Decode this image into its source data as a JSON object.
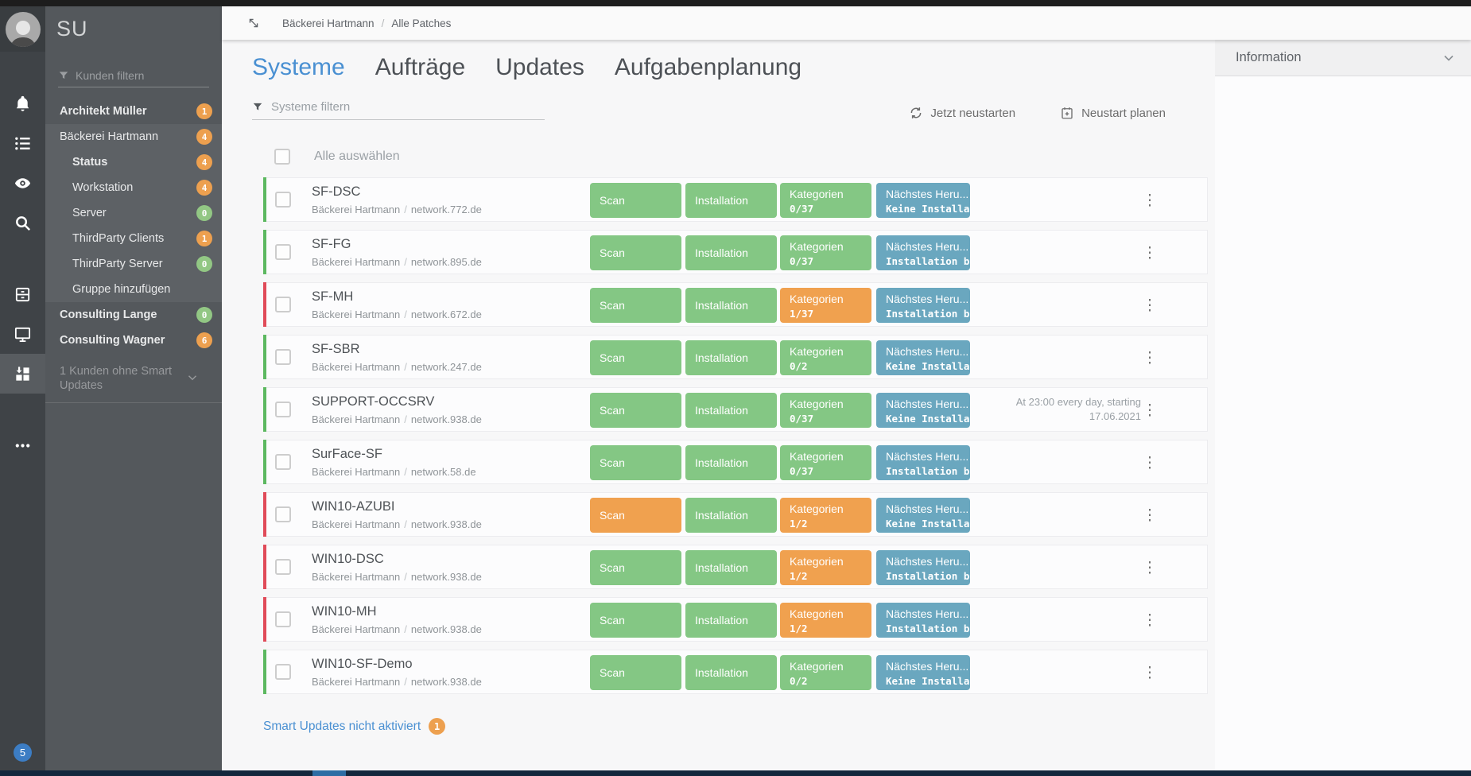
{
  "icons": {
    "kebab": "⋮"
  },
  "colors": {
    "accent_blue": "#4a90d2",
    "button_green": "#84c784",
    "button_orange": "#f0a14f",
    "button_blue": "#6aa7bf",
    "bar_green": "#5cb860",
    "bar_red": "#e04b59",
    "badge_orange": "#eda04f",
    "badge_green": "#92c784",
    "rail_badge_blue": "#3c7dc4"
  },
  "rail": {
    "badge_count": "5"
  },
  "sidebar": {
    "title": "SU",
    "filter_placeholder": "Kunden filtern",
    "items": [
      {
        "label": "Architekt Müller",
        "badge": "1",
        "badge_color": "orange",
        "bold": true,
        "indent": false,
        "group": false
      },
      {
        "label": "Bäckerei Hartmann",
        "badge": "4",
        "badge_color": "orange",
        "bold": false,
        "indent": false,
        "group": true
      },
      {
        "label": "Status",
        "badge": "4",
        "badge_color": "orange",
        "bold": true,
        "indent": true,
        "group": true
      },
      {
        "label": "Workstation",
        "badge": "4",
        "badge_color": "orange",
        "bold": false,
        "indent": true,
        "group": true
      },
      {
        "label": "Server",
        "badge": "0",
        "badge_color": "green",
        "bold": false,
        "indent": true,
        "group": true
      },
      {
        "label": "ThirdParty Clients",
        "badge": "1",
        "badge_color": "orange",
        "bold": false,
        "indent": true,
        "group": true
      },
      {
        "label": "ThirdParty Server",
        "badge": "0",
        "badge_color": "green",
        "bold": false,
        "indent": true,
        "group": true
      },
      {
        "label": "Gruppe hinzufügen",
        "badge": "",
        "badge_color": "",
        "bold": false,
        "indent": true,
        "group": true
      },
      {
        "label": "Consulting Lange",
        "badge": "0",
        "badge_color": "green",
        "bold": true,
        "indent": false,
        "group": false
      },
      {
        "label": "Consulting Wagner",
        "badge": "6",
        "badge_color": "orange",
        "bold": true,
        "indent": false,
        "group": false
      }
    ],
    "footer_label": "1 Kunden ohne Smart Updates"
  },
  "topbar": {
    "breadcrumb_1": "Bäckerei Hartmann",
    "breadcrumb_sep": "/",
    "breadcrumb_2": "Alle Patches"
  },
  "main": {
    "tabs": [
      {
        "label": "Systeme",
        "active": true
      },
      {
        "label": "Aufträge",
        "active": false
      },
      {
        "label": "Updates",
        "active": false
      },
      {
        "label": "Aufgabenplanung",
        "active": false
      }
    ],
    "filter_placeholder": "Systeme filtern",
    "actions": [
      {
        "label": "Jetzt neustarten",
        "icon": "refresh-icon"
      },
      {
        "label": "Neustart planen",
        "icon": "calendar-plus-icon"
      }
    ],
    "select_all_label": "Alle auswählen",
    "button_labels": {
      "scan": "Scan",
      "installation": "Installation",
      "kategorien": "Kategorien",
      "next": "Nächstes Heru..."
    },
    "rows": [
      {
        "name": "SF-DSC",
        "customer": "Bäckerei Hartmann",
        "network": "network.772.de",
        "bar": "green",
        "scan": "green",
        "installation": "green",
        "kategorien_value": "0/37",
        "kategorien_state": "green",
        "next_value": "Keine Installation",
        "schedule": ""
      },
      {
        "name": "SF-FG",
        "customer": "Bäckerei Hartmann",
        "network": "network.895.de",
        "bar": "green",
        "scan": "green",
        "installation": "green",
        "kategorien_value": "0/37",
        "kategorien_state": "green",
        "next_value": "Installation bereit",
        "schedule": ""
      },
      {
        "name": "SF-MH",
        "customer": "Bäckerei Hartmann",
        "network": "network.672.de",
        "bar": "red",
        "scan": "green",
        "installation": "green",
        "kategorien_value": "1/37",
        "kategorien_state": "orange",
        "next_value": "Installation bereit",
        "schedule": ""
      },
      {
        "name": "SF-SBR",
        "customer": "Bäckerei Hartmann",
        "network": "network.247.de",
        "bar": "green",
        "scan": "green",
        "installation": "green",
        "kategorien_value": "0/2",
        "kategorien_state": "green",
        "next_value": "Keine Installation",
        "schedule": ""
      },
      {
        "name": "SUPPORT-OCCSRV",
        "customer": "Bäckerei Hartmann",
        "network": "network.938.de",
        "bar": "green",
        "scan": "green",
        "installation": "green",
        "kategorien_value": "0/37",
        "kategorien_state": "green",
        "next_value": "Keine Installation",
        "schedule": "At 23:00 every day, starting 17.06.2021"
      },
      {
        "name": "SurFace-SF",
        "customer": "Bäckerei Hartmann",
        "network": "network.58.de",
        "bar": "green",
        "scan": "green",
        "installation": "green",
        "kategorien_value": "0/37",
        "kategorien_state": "green",
        "next_value": "Installation bereit",
        "schedule": ""
      },
      {
        "name": "WIN10-AZUBI",
        "customer": "Bäckerei Hartmann",
        "network": "network.938.de",
        "bar": "red",
        "scan": "orange",
        "installation": "green",
        "kategorien_value": "1/2",
        "kategorien_state": "orange",
        "next_value": "Keine Installation",
        "schedule": ""
      },
      {
        "name": "WIN10-DSC",
        "customer": "Bäckerei Hartmann",
        "network": "network.938.de",
        "bar": "red",
        "scan": "green",
        "installation": "green",
        "kategorien_value": "1/2",
        "kategorien_state": "orange",
        "next_value": "Installation bereit",
        "schedule": ""
      },
      {
        "name": "WIN10-MH",
        "customer": "Bäckerei Hartmann",
        "network": "network.938.de",
        "bar": "red",
        "scan": "green",
        "installation": "green",
        "kategorien_value": "1/2",
        "kategorien_state": "orange",
        "next_value": "Installation bereit",
        "schedule": ""
      },
      {
        "name": "WIN10-SF-Demo",
        "customer": "Bäckerei Hartmann",
        "network": "network.938.de",
        "bar": "green",
        "scan": "green",
        "installation": "green",
        "kategorien_value": "0/2",
        "kategorien_state": "green",
        "next_value": "Keine Installation",
        "schedule": ""
      }
    ],
    "footer_link": {
      "label": "Smart Updates nicht aktiviert",
      "badge": "1"
    }
  },
  "right_panel": {
    "title": "Information"
  }
}
